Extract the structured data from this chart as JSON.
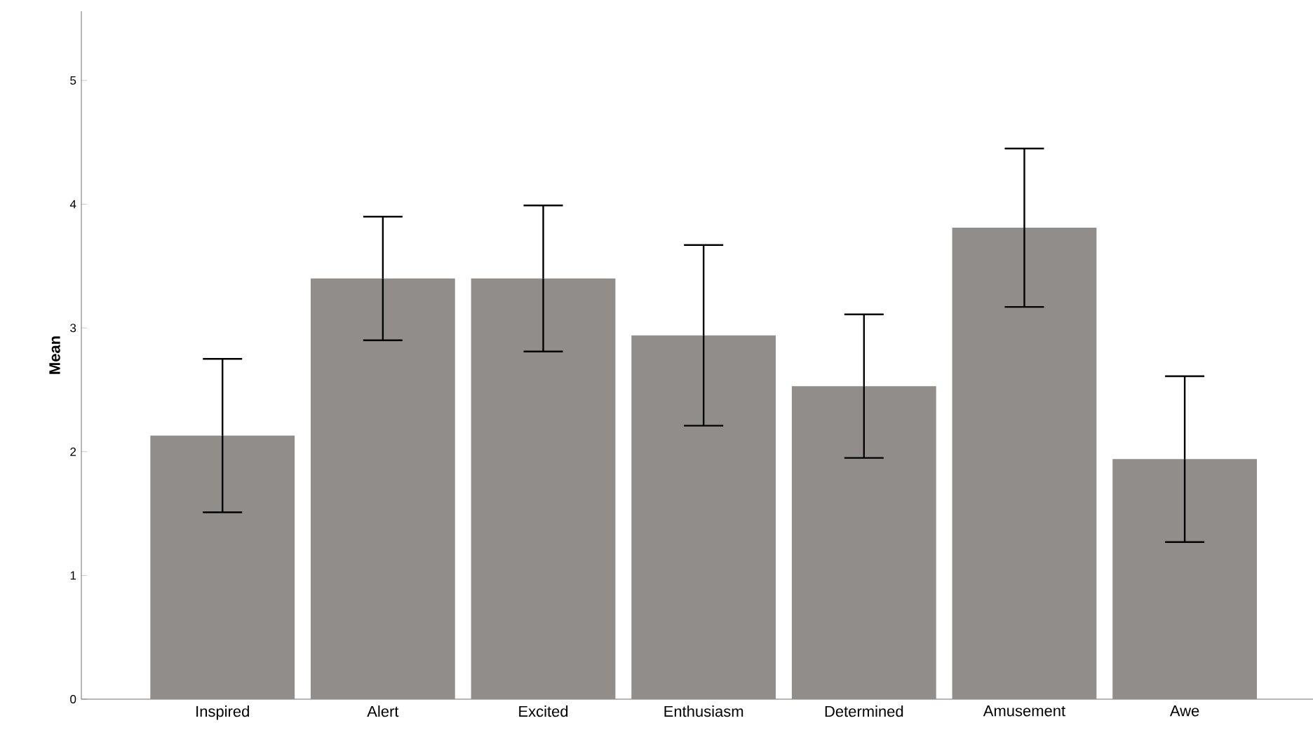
{
  "chart_data": {
    "type": "bar",
    "ylabel": "Mean",
    "categories": [
      "Inspired",
      "Alert",
      "Excited",
      "Enthusiasm",
      "Determined",
      "Amusement",
      "Awe"
    ],
    "values": [
      2.13,
      3.4,
      3.4,
      2.94,
      2.53,
      3.81,
      1.94
    ],
    "errors": [
      0.62,
      0.5,
      0.59,
      0.73,
      0.58,
      0.64,
      0.67
    ],
    "color": "#918d8b",
    "ylim": [
      0,
      5.56
    ],
    "yticks": [
      0,
      1,
      2,
      3,
      4,
      5
    ],
    "grid": false
  }
}
